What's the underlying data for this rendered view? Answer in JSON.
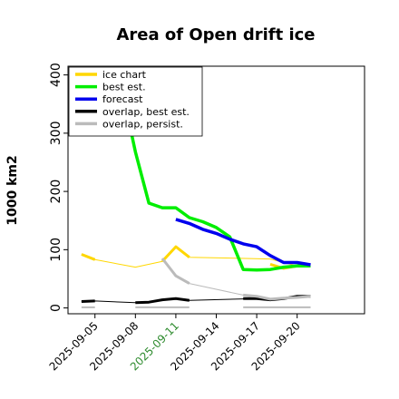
{
  "chart_data": {
    "type": "line",
    "title": "Area of Open drift ice",
    "ylabel": "1000 km2",
    "xlabel": "",
    "xlim": [
      1,
      23
    ],
    "ylim": [
      -10,
      415
    ],
    "y_ticks": [
      0,
      100,
      200,
      300,
      400
    ],
    "x_tick_positions": [
      3,
      6,
      9,
      12,
      15,
      18
    ],
    "x_tick_labels": [
      "2025-09-05",
      "2025-09-08",
      "2025-09-11",
      "2025-09-14",
      "2025-09-17",
      "2025-09-20"
    ],
    "x_tick_label_colors": [
      "#000000",
      "#000000",
      "#2e8b2e",
      "#000000",
      "#000000",
      "#000000"
    ],
    "grid": false,
    "legend": {
      "placement": "top-left",
      "entries": [
        {
          "label": "ice chart",
          "color": "#ffd700"
        },
        {
          "label": "best est.",
          "color": "#00ee00"
        },
        {
          "label": "forecast",
          "color": "#0000ee"
        },
        {
          "label": "overlap, best est.",
          "color": "#000000"
        },
        {
          "label": "overlap, persist.",
          "color": "#bbbbbb"
        }
      ]
    },
    "series": [
      {
        "key": "ice_chart_thin",
        "color": "#ffd700",
        "width": 1.0,
        "x": [
          2,
          3,
          6,
          8,
          9,
          10,
          16,
          18
        ],
        "y": [
          92,
          83,
          70,
          80,
          105,
          87,
          84,
          72
        ]
      },
      {
        "key": "ice_chart",
        "color": "#ffd700",
        "width": 3.0,
        "segments": [
          {
            "x": [
              2,
              3
            ],
            "y": [
              92,
              83
            ]
          },
          {
            "x": [
              8,
              9,
              10
            ],
            "y": [
              80,
              105,
              87
            ]
          },
          {
            "x": [
              16,
              17,
              18
            ],
            "y": [
              75,
              68,
              72
            ]
          }
        ]
      },
      {
        "key": "best_est",
        "color": "#00ee00",
        "width": 3.5,
        "x": [
          4.6,
          5.7,
          6.0,
          7.0,
          8.0,
          9.0,
          10.0,
          11.0,
          12.0,
          13.0,
          14.0,
          15.0,
          16.0,
          17.0,
          18.0,
          19.0
        ],
        "y": [
          320,
          300,
          268,
          180,
          172,
          172,
          155,
          148,
          138,
          122,
          66,
          65,
          66,
          70,
          72,
          72
        ]
      },
      {
        "key": "forecast",
        "color": "#0000ee",
        "width": 3.5,
        "x": [
          9.0,
          10.0,
          11.0,
          12.0,
          13.0,
          14.0,
          15.0,
          16.0,
          17.0,
          18.0,
          19.0
        ],
        "y": [
          152,
          145,
          135,
          128,
          118,
          110,
          105,
          90,
          78,
          78,
          74
        ]
      },
      {
        "key": "overlap_best_est_thin",
        "color": "#000000",
        "width": 1.0,
        "x": [
          2,
          3,
          6,
          7,
          8,
          9,
          10,
          15,
          16,
          17,
          18,
          19
        ],
        "y": [
          11,
          12,
          9,
          10,
          14,
          16,
          13,
          16,
          14,
          16,
          20,
          20
        ]
      },
      {
        "key": "overlap_best_est",
        "color": "#000000",
        "width": 3.0,
        "segments": [
          {
            "x": [
              2,
              3
            ],
            "y": [
              11,
              12
            ]
          },
          {
            "x": [
              6,
              7,
              8,
              9,
              10
            ],
            "y": [
              9,
              10,
              14,
              16,
              13
            ]
          },
          {
            "x": [
              14,
              15,
              16,
              17,
              18,
              19
            ],
            "y": [
              16,
              16,
              14,
              16,
              20,
              20
            ]
          }
        ]
      },
      {
        "key": "overlap_persist_thin",
        "color": "#bbbbbb",
        "width": 1.0,
        "x": [
          8,
          9,
          10,
          14,
          16,
          18,
          19
        ],
        "y": [
          85,
          55,
          42,
          22,
          15,
          18,
          20
        ]
      },
      {
        "key": "overlap_persist",
        "color": "#bbbbbb",
        "width": 3.0,
        "segments": [
          {
            "x": [
              8,
              9,
              10
            ],
            "y": [
              85,
              55,
              42
            ]
          },
          {
            "x": [
              14,
              15,
              16,
              17,
              18,
              19
            ],
            "y": [
              22,
              20,
              15,
              17,
              18,
              20
            ]
          }
        ]
      },
      {
        "key": "overlap_persist_base",
        "color": "#bbbbbb",
        "width": 2.0,
        "segments": [
          {
            "x": [
              2,
              3
            ],
            "y": [
              1,
              1
            ]
          },
          {
            "x": [
              6,
              10
            ],
            "y": [
              1,
              1
            ]
          },
          {
            "x": [
              14,
              19
            ],
            "y": [
              1,
              1
            ]
          }
        ]
      }
    ]
  }
}
